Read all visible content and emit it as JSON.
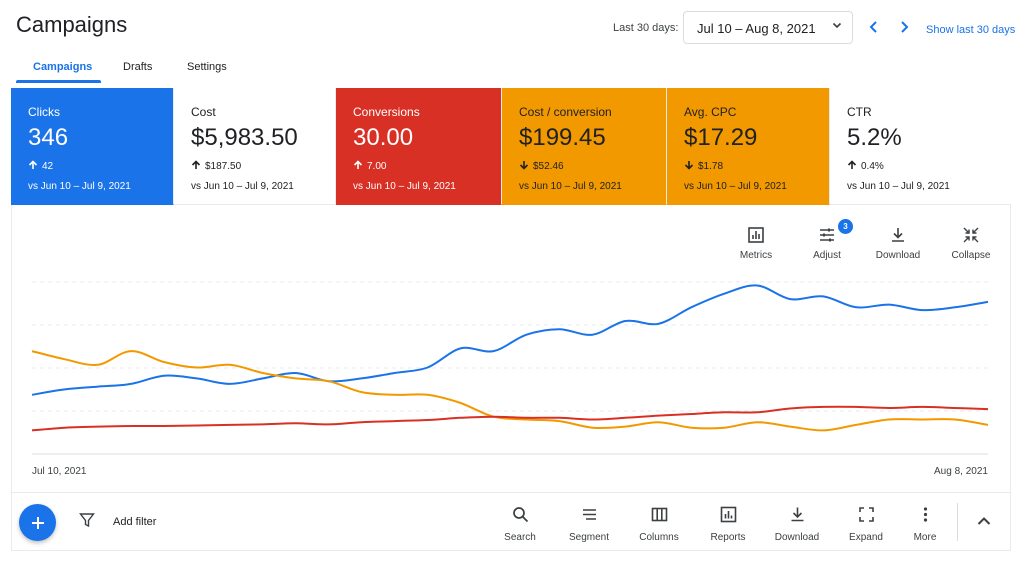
{
  "header": {
    "title": "Campaigns",
    "range_label": "Last 30 days:",
    "range_value": "Jul 10 – Aug 8, 2021",
    "show_last": "Show last 30 days"
  },
  "tabs": [
    {
      "label": "Campaigns",
      "active": true
    },
    {
      "label": "Drafts",
      "active": false
    },
    {
      "label": "Settings",
      "active": false
    }
  ],
  "cards": [
    {
      "label": "Clicks",
      "value": "346",
      "delta": "42",
      "direction": "up",
      "compare": "vs Jun 10 – Jul 9, 2021",
      "bg": "#1a73e8",
      "fg": "#ffffff"
    },
    {
      "label": "Cost",
      "value": "$5,983.50",
      "delta": "$187.50",
      "direction": "up",
      "compare": "vs Jun 10 – Jul 9, 2021",
      "bg": "#ffffff",
      "fg": "#202124"
    },
    {
      "label": "Conversions",
      "value": "30.00",
      "delta": "7.00",
      "direction": "up",
      "compare": "vs Jun 10 – Jul 9, 2021",
      "bg": "#d93025",
      "fg": "#ffffff"
    },
    {
      "label": "Cost / conversion",
      "value": "$199.45",
      "delta": "$52.46",
      "direction": "down",
      "compare": "vs Jun 10 – Jul 9, 2021",
      "bg": "#f29900",
      "fg": "#202124"
    },
    {
      "label": "Avg. CPC",
      "value": "$17.29",
      "delta": "$1.78",
      "direction": "down",
      "compare": "vs Jun 10 – Jul 9, 2021",
      "bg": "#f29900",
      "fg": "#202124"
    },
    {
      "label": "CTR",
      "value": "5.2%",
      "delta": "0.4%",
      "direction": "up",
      "compare": "vs Jun 10 – Jul 9, 2021",
      "bg": "#ffffff",
      "fg": "#202124"
    }
  ],
  "chart_tools": [
    {
      "label": "Metrics",
      "icon": "bar-chart-icon"
    },
    {
      "label": "Adjust",
      "icon": "sliders-icon",
      "badge": "3"
    },
    {
      "label": "Download",
      "icon": "download-icon"
    },
    {
      "label": "Collapse",
      "icon": "collapse-icon"
    }
  ],
  "chart_data": {
    "type": "line",
    "x_start": "Jul 10, 2021",
    "x_end": "Aug 8, 2021",
    "grid": true,
    "series": [
      {
        "color": "#1a73e8",
        "values": [
          11,
          12,
          12.5,
          13,
          14.5,
          14,
          13,
          14,
          15,
          13.5,
          14,
          15,
          16,
          19.5,
          19,
          22,
          23,
          22,
          24.5,
          24,
          27,
          29.5,
          31,
          28.5,
          29,
          27,
          27.5,
          26.5,
          27,
          28
        ]
      },
      {
        "color": "#f29900",
        "values": [
          19,
          17.5,
          16.5,
          19,
          17,
          16,
          16.5,
          15,
          14,
          13.5,
          11.5,
          11,
          11,
          9.5,
          7,
          6.5,
          6.2,
          5,
          5.2,
          6,
          5,
          5,
          6,
          5.2,
          4.5,
          5.5,
          6.5,
          6.5,
          6.5,
          5.5
        ]
      },
      {
        "color": "#d93025",
        "values": [
          4.5,
          5,
          5.2,
          5.3,
          5.3,
          5.4,
          5.5,
          5.6,
          5.8,
          5.6,
          6,
          6.2,
          6.4,
          6.8,
          7,
          6.8,
          6.8,
          6.5,
          6.8,
          7.2,
          7.5,
          7.8,
          7.8,
          8.5,
          8.8,
          8.8,
          8.6,
          8.8,
          8.6,
          8.4
        ]
      }
    ]
  },
  "bottom": {
    "add_filter": "Add filter",
    "tools": [
      {
        "label": "Search",
        "icon": "search-icon"
      },
      {
        "label": "Segment",
        "icon": "segment-icon"
      },
      {
        "label": "Columns",
        "icon": "columns-icon"
      },
      {
        "label": "Reports",
        "icon": "reports-icon"
      },
      {
        "label": "Download",
        "icon": "download-icon"
      },
      {
        "label": "Expand",
        "icon": "expand-icon"
      },
      {
        "label": "More",
        "icon": "more-vert-icon"
      }
    ]
  }
}
